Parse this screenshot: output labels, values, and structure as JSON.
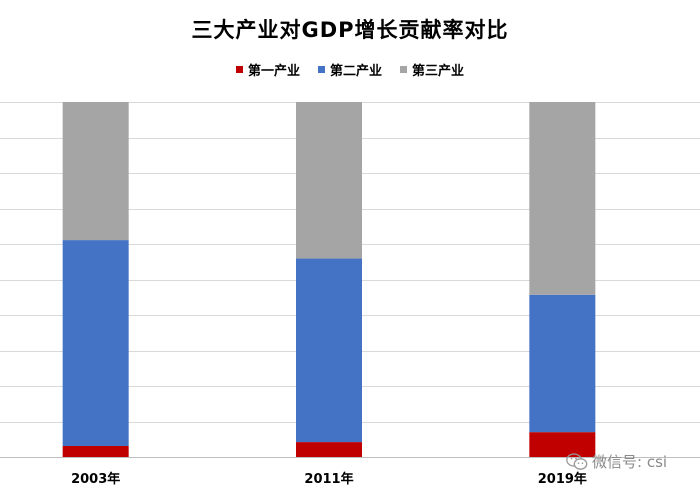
{
  "chart_data": {
    "type": "bar",
    "stacked": true,
    "title": "三大产业对GDP增长贡献率对比",
    "categories": [
      "2003年",
      "2011年",
      "2019年"
    ],
    "series": [
      {
        "name": "第一产业",
        "color": "#c00000",
        "values": [
          3.1,
          4.2,
          7.0
        ]
      },
      {
        "name": "第二产业",
        "color": "#4472c4",
        "values": [
          58.0,
          51.7,
          38.7
        ]
      },
      {
        "name": "第三产业",
        "color": "#a5a5a5",
        "values": [
          38.9,
          44.1,
          54.3
        ]
      }
    ],
    "ylim": [
      0,
      100
    ],
    "y_gridlines": 10,
    "grid": true,
    "legend_position": "top"
  },
  "watermark": {
    "icon": "wechat-icon",
    "text": "微信号: csi"
  }
}
